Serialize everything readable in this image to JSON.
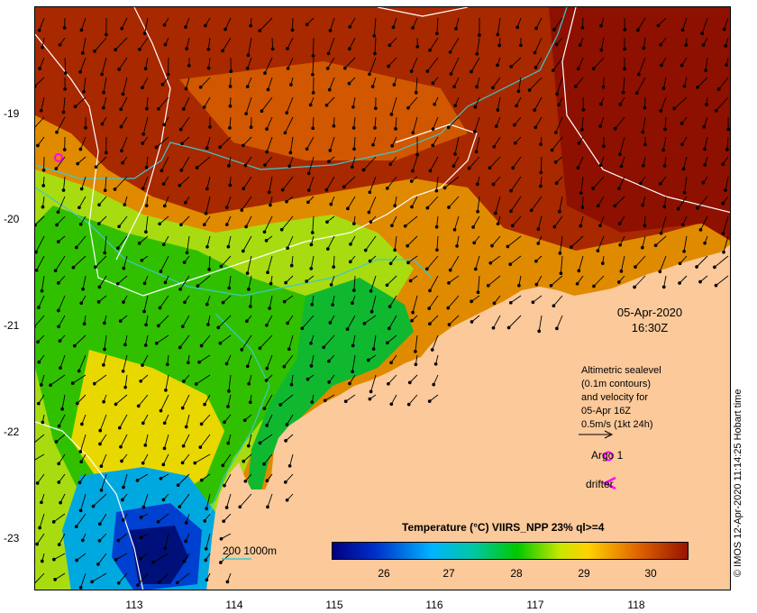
{
  "map": {
    "lat_ticks": [
      "-19",
      "-20",
      "-21",
      "-22",
      "-23"
    ],
    "lon_ticks": [
      "113",
      "114",
      "115",
      "116",
      "117",
      "118"
    ]
  },
  "overlay": {
    "date": "05-Apr-2020",
    "time": "16:30Z",
    "altimetry_lines": [
      "Altimetric sealevel",
      "(0.1m contours)",
      "and velocity for",
      "05-Apr 16Z",
      "0.5m/s (1kt 24h)"
    ],
    "argo_label": "Argo 1",
    "drifter_label": "drifter",
    "bathy_label": "200  1000m",
    "colorbar_title": "Temperature (°C) VIIRS_NPP 23% ql>=4",
    "colorbar_ticks": [
      "26",
      "27",
      "28",
      "29",
      "30"
    ],
    "credit": "© IMOS 12-Apr-2020 11:14:25 Hobart time"
  },
  "colors": {
    "land": "#fbc99a",
    "argo": "#ff00ff",
    "bathy_contour": "#40c8c8",
    "sealevel_contour": "#ffffff"
  }
}
